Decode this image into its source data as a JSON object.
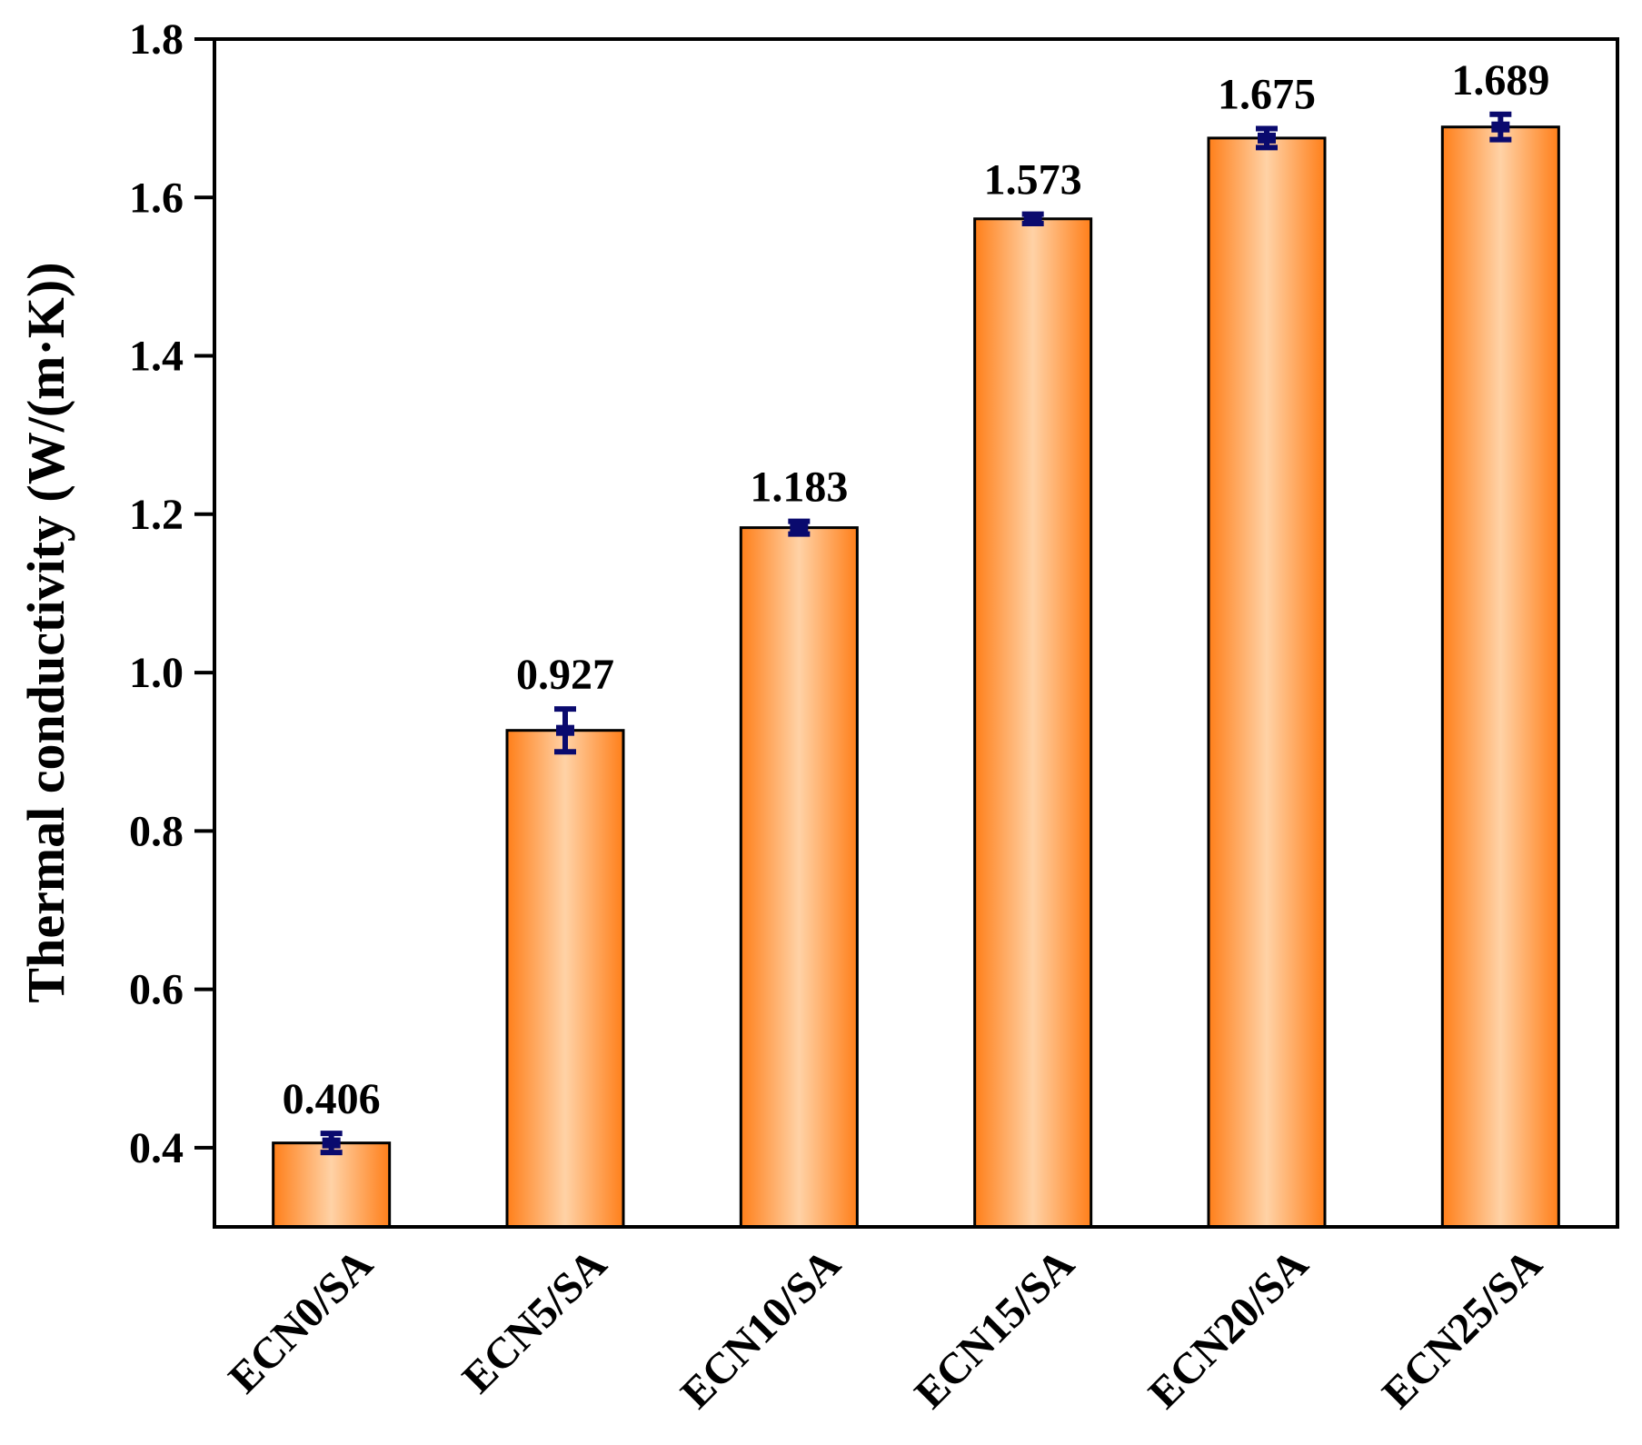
{
  "chart_data": {
    "type": "bar",
    "title": "",
    "xlabel": "",
    "ylabel": "Thermal conductivity (W/(m·K))",
    "categories": [
      "ECN0/SA",
      "ECN5/SA",
      "ECN10/SA",
      "ECN15/SA",
      "ECN20/SA",
      "ECN25/SA"
    ],
    "values": [
      0.406,
      0.927,
      1.183,
      1.573,
      1.675,
      1.689
    ],
    "value_labels": [
      "0.406",
      "0.927",
      "1.183",
      "1.573",
      "1.675",
      "1.689"
    ],
    "errors": [
      0.012,
      0.027,
      0.008,
      0.006,
      0.012,
      0.016
    ],
    "ylim": [
      0.3,
      1.8
    ],
    "yticks": [
      0.4,
      0.6,
      0.8,
      1.0,
      1.2,
      1.4,
      1.6,
      1.8
    ],
    "ytick_labels": [
      "0.4",
      "0.6",
      "0.8",
      "1.0",
      "1.2",
      "1.4",
      "1.6",
      "1.8"
    ],
    "grid": false,
    "legend": false
  },
  "colors": {
    "bar_edge": "#ff7f1a",
    "bar_center": "#ffd2a6",
    "bar_outline": "#000000",
    "error_bar": "#0a0a6e",
    "axis": "#000000"
  }
}
